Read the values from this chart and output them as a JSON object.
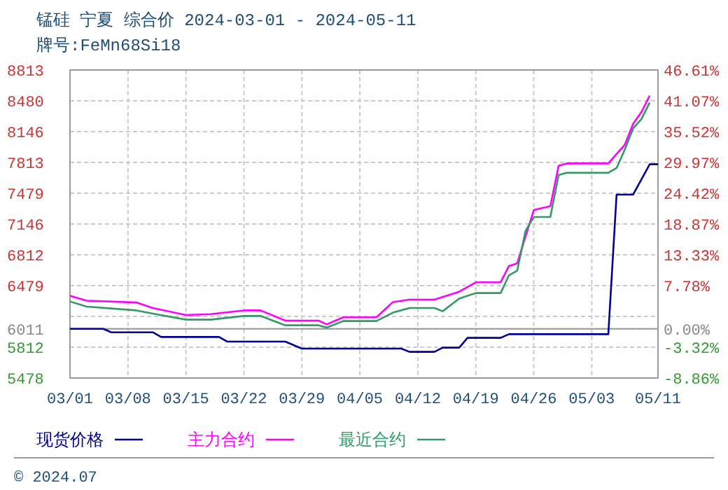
{
  "chart_data": {
    "type": "line",
    "title": "锰硅 宁夏 综合价 2024-03-01 - 2024-05-11",
    "subtitle": "牌号:FeMn68Si18",
    "xlim": [
      "2024-03-01",
      "2024-05-11"
    ],
    "xticks": [
      {
        "value": "2024-03-01",
        "label": "03/01"
      },
      {
        "value": "2024-03-08",
        "label": "03/08"
      },
      {
        "value": "2024-03-15",
        "label": "03/15"
      },
      {
        "value": "2024-03-22",
        "label": "03/22"
      },
      {
        "value": "2024-03-29",
        "label": "03/29"
      },
      {
        "value": "2024-04-05",
        "label": "04/05"
      },
      {
        "value": "2024-04-12",
        "label": "04/12"
      },
      {
        "value": "2024-04-19",
        "label": "04/19"
      },
      {
        "value": "2024-04-26",
        "label": "04/26"
      },
      {
        "value": "2024-05-03",
        "label": "05/03"
      },
      {
        "value": "2024-05-11",
        "label": "05/11"
      }
    ],
    "ylim": [
      5478,
      8813
    ],
    "yticks": [
      5478,
      5812,
      6011,
      {
        "value": 6145,
        "label": null
      },
      6479,
      6812,
      7146,
      7479,
      7813,
      8146,
      8480,
      8813
    ],
    "y2lim": [
      -8.86,
      46.61
    ],
    "y2ticks": [
      {
        "value": -8.86,
        "label": "-8.86%"
      },
      {
        "value": -3.32,
        "label": "-3.32%"
      },
      {
        "value": 0,
        "label": "0.00%"
      },
      {
        "value": 7.78,
        "label": "7.78%"
      },
      {
        "value": 13.33,
        "label": "13.33%"
      },
      {
        "value": 18.87,
        "label": "18.87%"
      },
      {
        "value": 24.42,
        "label": "24.42%"
      },
      {
        "value": 29.97,
        "label": "29.97%"
      },
      {
        "value": 35.52,
        "label": "35.52%"
      },
      {
        "value": 41.07,
        "label": "41.07%"
      },
      {
        "value": 46.61,
        "label": "46.61%"
      }
    ],
    "ref_lines": [
      {
        "axis": "y",
        "value": 6011,
        "color": "#999999"
      }
    ],
    "grid": true,
    "legend": "bottom",
    "line_style": "solid",
    "series": [
      {
        "name": "现货价格",
        "color": "#000099",
        "x": [
          "2024-03-01",
          "2024-03-05",
          "2024-03-06",
          "2024-03-11",
          "2024-03-12",
          "2024-03-19",
          "2024-03-20",
          "2024-03-27",
          "2024-03-29",
          "2024-04-10",
          "2024-04-11",
          "2024-04-14",
          "2024-04-15",
          "2024-04-17",
          "2024-04-18",
          "2024-04-22",
          "2024-04-23",
          "2024-05-05",
          "2024-05-06",
          "2024-05-08",
          "2024-05-10",
          "2024-05-11"
        ],
        "values": [
          6011,
          6011,
          5973,
          5973,
          5922,
          5922,
          5872,
          5872,
          5796,
          5796,
          5761,
          5761,
          5807,
          5807,
          5913,
          5913,
          5953,
          5953,
          7464,
          7464,
          7793,
          7793
        ]
      },
      {
        "name": "主力合约",
        "color": "#ff00ff",
        "x": [
          "2024-03-01",
          "2024-03-03",
          "2024-03-09",
          "2024-03-11",
          "2024-03-15",
          "2024-03-18",
          "2024-03-22",
          "2024-03-24",
          "2024-03-27",
          "2024-03-31",
          "2024-04-01",
          "2024-04-03",
          "2024-04-07",
          "2024-04-09",
          "2024-04-11",
          "2024-04-14",
          "2024-04-17",
          "2024-04-19",
          "2024-04-22",
          "2024-04-23",
          "2024-04-24",
          "2024-04-26",
          "2024-04-28",
          "2024-04-29",
          "2024-04-30",
          "2024-05-05",
          "2024-05-07",
          "2024-05-08",
          "2024-05-09",
          "2024-05-10"
        ],
        "values": [
          6368,
          6316,
          6296,
          6236,
          6160,
          6170,
          6210,
          6210,
          6100,
          6100,
          6059,
          6135,
          6135,
          6301,
          6327,
          6327,
          6413,
          6514,
          6514,
          6691,
          6720,
          7297,
          7338,
          7777,
          7802,
          7802,
          8005,
          8232,
          8358,
          8535
        ]
      },
      {
        "name": "最近合约",
        "color": "#339966",
        "x": [
          "2024-03-01",
          "2024-03-03",
          "2024-03-09",
          "2024-03-11",
          "2024-03-15",
          "2024-03-18",
          "2024-03-22",
          "2024-03-24",
          "2024-03-27",
          "2024-03-31",
          "2024-04-01",
          "2024-04-03",
          "2024-04-07",
          "2024-04-09",
          "2024-04-11",
          "2024-04-14",
          "2024-04-15",
          "2024-04-17",
          "2024-04-19",
          "2024-04-22",
          "2024-04-23",
          "2024-04-24",
          "2024-04-25",
          "2024-04-26",
          "2024-04-28",
          "2024-04-29",
          "2024-04-30",
          "2024-05-05",
          "2024-05-06",
          "2024-05-07",
          "2024-05-08",
          "2024-05-09",
          "2024-05-10"
        ],
        "values": [
          6307,
          6251,
          6210,
          6175,
          6110,
          6110,
          6150,
          6150,
          6049,
          6049,
          6024,
          6095,
          6095,
          6186,
          6236,
          6236,
          6201,
          6338,
          6398,
          6398,
          6590,
          6640,
          7070,
          7221,
          7221,
          7676,
          7700,
          7700,
          7752,
          7953,
          8181,
          8282,
          8460
        ]
      }
    ],
    "annotations": [
      "© 2024.07"
    ]
  }
}
